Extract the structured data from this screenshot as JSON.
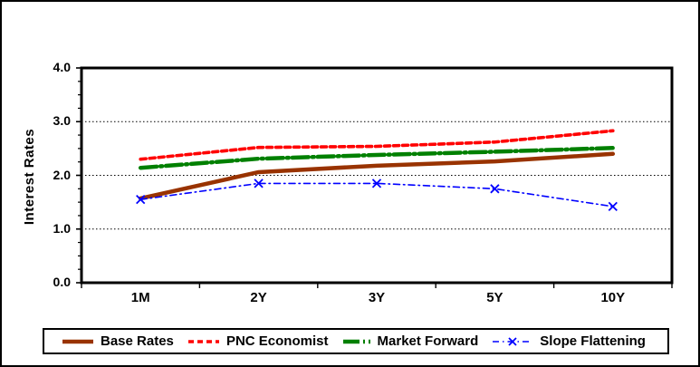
{
  "chart_data": {
    "type": "line",
    "title": "",
    "ylabel": "Interest Rates",
    "xlabel": "",
    "categories": [
      "1M",
      "2Y",
      "3Y",
      "5Y",
      "10Y"
    ],
    "series": [
      {
        "name": "Base Rates",
        "color": "#993300",
        "style": "solid",
        "thickness": 4.5,
        "marker": "none",
        "values": [
          1.57,
          2.06,
          2.18,
          2.26,
          2.4
        ]
      },
      {
        "name": "PNC Economist",
        "color": "#FF0000",
        "style": "dash",
        "thickness": 3.6,
        "marker": "none",
        "values": [
          2.3,
          2.52,
          2.54,
          2.62,
          2.83
        ]
      },
      {
        "name": "Market Forward",
        "color": "#008000",
        "style": "long-dash-dot",
        "thickness": 4.5,
        "marker": "none",
        "values": [
          2.14,
          2.31,
          2.38,
          2.44,
          2.51
        ]
      },
      {
        "name": "Slope Flattening",
        "color": "#0000FF",
        "style": "dash-dot",
        "thickness": 1.6,
        "marker": "x",
        "values": [
          1.55,
          1.85,
          1.85,
          1.75,
          1.42
        ]
      }
    ],
    "ylim": [
      0.0,
      4.0
    ],
    "y_ticks": [
      "0.0",
      "1.0",
      "2.0",
      "3.0",
      "4.0"
    ],
    "y_minor_interval": 0.25,
    "gridlines": "horizontal-dotted",
    "grid_color": "#000000",
    "axis_color": "#000000",
    "legend_position": "bottom",
    "plot_background": "#FFFFFF"
  }
}
